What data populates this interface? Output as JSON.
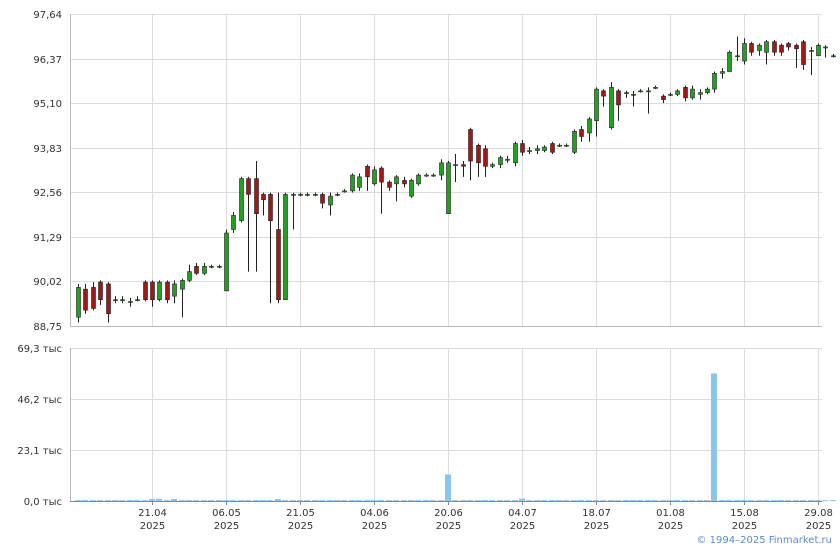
{
  "chart_data": [
    {
      "type": "candlestick",
      "ylim": [
        88.75,
        97.64
      ],
      "y_tick_labels": [
        "97,64",
        "96,37",
        "95,10",
        "93,83",
        "92,56",
        "91,29",
        "90,02",
        "88,75"
      ],
      "y_ticks": [
        97.64,
        96.37,
        95.1,
        93.83,
        92.56,
        91.29,
        90.02,
        88.75
      ],
      "grid": true,
      "x_tick_labels": [
        {
          "day": "21.04",
          "year": "2025",
          "index": 10
        },
        {
          "day": "06.05",
          "year": "2025",
          "index": 20
        },
        {
          "day": "21.05",
          "year": "2025",
          "index": 30
        },
        {
          "day": "04.06",
          "year": "2025",
          "index": 40
        },
        {
          "day": "20.06",
          "year": "2025",
          "index": 50
        },
        {
          "day": "04.07",
          "year": "2025",
          "index": 60
        },
        {
          "day": "18.07",
          "year": "2025",
          "index": 70
        },
        {
          "day": "01.08",
          "year": "2025",
          "index": 80
        },
        {
          "day": "15.08",
          "year": "2025",
          "index": 90
        },
        {
          "day": "29.08",
          "year": "2025",
          "index": 100
        }
      ],
      "up_color": "#22a022",
      "down_color": "#a01818",
      "candles": [
        [
          89.0,
          89.85,
          88.85,
          89.95
        ],
        [
          89.8,
          89.2,
          89.1,
          89.95
        ],
        [
          89.85,
          89.25,
          89.2,
          90.0
        ],
        [
          90.0,
          89.5,
          89.35,
          90.05
        ],
        [
          89.95,
          89.1,
          88.85,
          90.0
        ],
        [
          89.5,
          89.5,
          89.4,
          89.6
        ],
        [
          89.5,
          89.5,
          89.4,
          89.6
        ],
        [
          89.45,
          89.45,
          89.3,
          89.55
        ],
        [
          89.5,
          89.5,
          89.45,
          89.6
        ],
        [
          90.0,
          89.5,
          89.45,
          90.05
        ],
        [
          90.0,
          89.5,
          89.3,
          90.05
        ],
        [
          89.5,
          90.0,
          89.45,
          90.05
        ],
        [
          90.0,
          89.5,
          89.4,
          90.05
        ],
        [
          89.6,
          89.95,
          89.4,
          90.05
        ],
        [
          89.8,
          90.05,
          89.0,
          90.1
        ],
        [
          90.05,
          90.3,
          90.0,
          90.5
        ],
        [
          90.45,
          90.25,
          90.2,
          90.55
        ],
        [
          90.25,
          90.45,
          90.2,
          90.55
        ],
        [
          90.45,
          90.45,
          90.4,
          90.5
        ],
        [
          90.45,
          90.45,
          90.4,
          90.5
        ],
        [
          89.75,
          91.4,
          89.75,
          91.5
        ],
        [
          91.5,
          91.9,
          91.4,
          92.0
        ],
        [
          91.75,
          92.95,
          91.7,
          93.0
        ],
        [
          92.95,
          92.5,
          90.3,
          93.0
        ],
        [
          92.95,
          91.95,
          90.3,
          93.45
        ],
        [
          92.5,
          92.35,
          91.9,
          92.55
        ],
        [
          92.5,
          91.75,
          89.4,
          92.55
        ],
        [
          91.5,
          89.5,
          89.4,
          92.55
        ],
        [
          89.5,
          92.5,
          89.5,
          92.55
        ],
        [
          92.5,
          92.5,
          91.5,
          92.55
        ],
        [
          92.5,
          92.5,
          92.45,
          92.55
        ],
        [
          92.5,
          92.5,
          92.45,
          92.55
        ],
        [
          92.5,
          92.5,
          92.45,
          92.55
        ],
        [
          92.5,
          92.25,
          92.1,
          92.55
        ],
        [
          92.2,
          92.45,
          91.9,
          92.55
        ],
        [
          92.5,
          92.5,
          92.45,
          92.55
        ],
        [
          92.6,
          92.6,
          92.55,
          92.65
        ],
        [
          92.6,
          93.05,
          92.55,
          93.1
        ],
        [
          92.7,
          93.0,
          92.6,
          93.1
        ],
        [
          93.3,
          93.0,
          92.6,
          93.35
        ],
        [
          92.8,
          93.2,
          92.75,
          93.3
        ],
        [
          93.25,
          92.85,
          91.95,
          93.3
        ],
        [
          92.85,
          92.7,
          92.6,
          92.9
        ],
        [
          92.8,
          93.0,
          92.3,
          93.05
        ],
        [
          92.9,
          92.8,
          92.7,
          93.0
        ],
        [
          92.45,
          92.9,
          92.4,
          92.95
        ],
        [
          92.8,
          93.05,
          92.75,
          93.1
        ],
        [
          93.05,
          93.05,
          93.0,
          93.1
        ],
        [
          93.05,
          93.05,
          93.0,
          93.1
        ],
        [
          93.05,
          93.4,
          92.9,
          93.5
        ],
        [
          91.95,
          93.4,
          91.95,
          93.45
        ],
        [
          93.35,
          93.35,
          92.85,
          93.65
        ],
        [
          93.35,
          93.3,
          93.0,
          93.45
        ],
        [
          94.35,
          93.45,
          92.9,
          94.4
        ],
        [
          93.9,
          93.4,
          93.0,
          93.95
        ],
        [
          93.8,
          93.3,
          93.0,
          93.9
        ],
        [
          93.3,
          93.35,
          93.25,
          93.4
        ],
        [
          93.35,
          93.55,
          93.25,
          93.6
        ],
        [
          93.5,
          93.5,
          93.4,
          93.6
        ],
        [
          93.4,
          93.95,
          93.3,
          94.0
        ],
        [
          93.95,
          93.7,
          93.6,
          94.05
        ],
        [
          93.75,
          93.75,
          93.65,
          93.85
        ],
        [
          93.75,
          93.8,
          93.65,
          93.9
        ],
        [
          93.75,
          93.85,
          93.7,
          93.9
        ],
        [
          93.95,
          93.7,
          93.65,
          94.0
        ],
        [
          93.9,
          93.9,
          93.85,
          93.95
        ],
        [
          93.9,
          93.9,
          93.85,
          93.95
        ],
        [
          93.7,
          94.3,
          93.65,
          94.35
        ],
        [
          94.35,
          94.15,
          94.0,
          94.45
        ],
        [
          94.25,
          94.65,
          94.0,
          94.7
        ],
        [
          94.6,
          95.5,
          94.15,
          95.55
        ],
        [
          95.45,
          95.3,
          95.0,
          95.5
        ],
        [
          94.4,
          95.55,
          94.35,
          95.7
        ],
        [
          95.45,
          95.05,
          94.6,
          95.5
        ],
        [
          95.4,
          95.4,
          95.25,
          95.45
        ],
        [
          95.35,
          95.35,
          95.0,
          95.45
        ],
        [
          95.45,
          95.45,
          95.4,
          95.5
        ],
        [
          95.45,
          95.45,
          94.8,
          95.55
        ],
        [
          95.55,
          95.55,
          95.5,
          95.6
        ],
        [
          95.3,
          95.2,
          95.1,
          95.35
        ],
        [
          95.35,
          95.35,
          95.3,
          95.4
        ],
        [
          95.35,
          95.45,
          95.3,
          95.5
        ],
        [
          95.55,
          95.25,
          95.15,
          95.6
        ],
        [
          95.25,
          95.5,
          95.2,
          95.6
        ],
        [
          95.35,
          95.4,
          95.2,
          95.5
        ],
        [
          95.4,
          95.5,
          95.35,
          95.55
        ],
        [
          95.5,
          95.95,
          95.4,
          96.0
        ],
        [
          95.95,
          96.0,
          95.8,
          96.1
        ],
        [
          96.0,
          96.55,
          96.0,
          96.6
        ],
        [
          96.45,
          96.45,
          96.3,
          97.0
        ],
        [
          96.3,
          96.8,
          96.2,
          96.95
        ],
        [
          96.8,
          96.55,
          96.45,
          96.85
        ],
        [
          96.6,
          96.75,
          96.45,
          96.8
        ],
        [
          96.55,
          96.85,
          96.2,
          96.9
        ],
        [
          96.85,
          96.55,
          96.45,
          96.9
        ],
        [
          96.75,
          96.55,
          96.45,
          96.8
        ],
        [
          96.8,
          96.7,
          96.6,
          96.85
        ],
        [
          96.75,
          96.65,
          96.1,
          96.8
        ],
        [
          96.85,
          96.2,
          96.05,
          96.9
        ],
        [
          96.6,
          96.6,
          95.9,
          96.7
        ],
        [
          96.45,
          96.75,
          96.45,
          96.8
        ],
        [
          96.7,
          96.7,
          96.4,
          96.75
        ],
        [
          96.45,
          96.45,
          96.4,
          96.5
        ]
      ],
      "volume": {
        "ylim": [
          0,
          69.3
        ],
        "y_tick_labels": [
          "69,3 тыс",
          "46,2 тыс",
          "23,1 тыс",
          "0,0 тыс"
        ],
        "y_ticks": [
          69.3,
          46.2,
          23.1,
          0
        ],
        "unit": "тыс",
        "bar_color": "#8cc4f0",
        "values": [
          0.4,
          0.4,
          0.4,
          0.4,
          0.4,
          0.4,
          0.4,
          0.4,
          0.4,
          0.4,
          0.9,
          1.0,
          0.4,
          0.9,
          0.4,
          0.4,
          0.4,
          0.4,
          0.4,
          0.4,
          0.4,
          0.4,
          0.4,
          0.4,
          0.4,
          0.4,
          0.4,
          0.9,
          0.4,
          0.4,
          0.4,
          0.4,
          0.4,
          0.4,
          0.4,
          0.4,
          0.4,
          0.4,
          0.4,
          0.4,
          0.4,
          0.4,
          0.4,
          0.4,
          0.4,
          0.4,
          0.4,
          0.4,
          0.4,
          0.4,
          12.0,
          0.4,
          0.4,
          0.4,
          0.4,
          0.4,
          0.4,
          0.4,
          0.4,
          0.4,
          1.1,
          0.4,
          0.4,
          0.4,
          0.4,
          0.4,
          0.4,
          0.4,
          0.4,
          0.4,
          0.4,
          0.4,
          0.4,
          0.4,
          0.4,
          0.4,
          0.4,
          0.4,
          0.4,
          0.4,
          0.4,
          0.4,
          0.4,
          0.4,
          0.4,
          0.4,
          57.8,
          0.4,
          0.4,
          0.4,
          0.4,
          0.4,
          0.4,
          0.4,
          0.4,
          0.4,
          0.4,
          0.4,
          0.4,
          0.4,
          0.4,
          0.4,
          0.4
        ]
      }
    }
  ],
  "footer": {
    "copyright": "© 1994–2025 Finmarket.ru"
  }
}
